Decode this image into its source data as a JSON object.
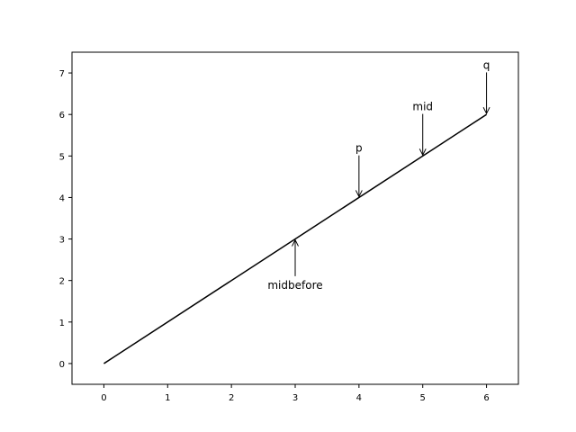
{
  "chart_data": {
    "type": "line",
    "title": "",
    "xlabel": "",
    "ylabel": "",
    "xlim": [
      -0.5,
      6.5
    ],
    "ylim": [
      -0.5,
      7.5
    ],
    "x_ticks": [
      0,
      1,
      2,
      3,
      4,
      5,
      6
    ],
    "y_ticks": [
      0,
      1,
      2,
      3,
      4,
      5,
      6,
      7
    ],
    "grid": false,
    "line_color": "#000000",
    "series": [
      {
        "x": [
          0,
          6
        ],
        "y": [
          0,
          6
        ]
      }
    ],
    "annotations": [
      {
        "text": "midbefore",
        "point": [
          3,
          3
        ],
        "text_pos": [
          3,
          1.8
        ],
        "direction": "up"
      },
      {
        "text": "p",
        "point": [
          4,
          4
        ],
        "text_pos": [
          4,
          5.1
        ],
        "direction": "down"
      },
      {
        "text": "mid",
        "point": [
          5,
          5
        ],
        "text_pos": [
          5,
          6.1
        ],
        "direction": "down"
      },
      {
        "text": "q",
        "point": [
          6,
          6
        ],
        "text_pos": [
          6,
          7.1
        ],
        "direction": "down"
      }
    ]
  }
}
